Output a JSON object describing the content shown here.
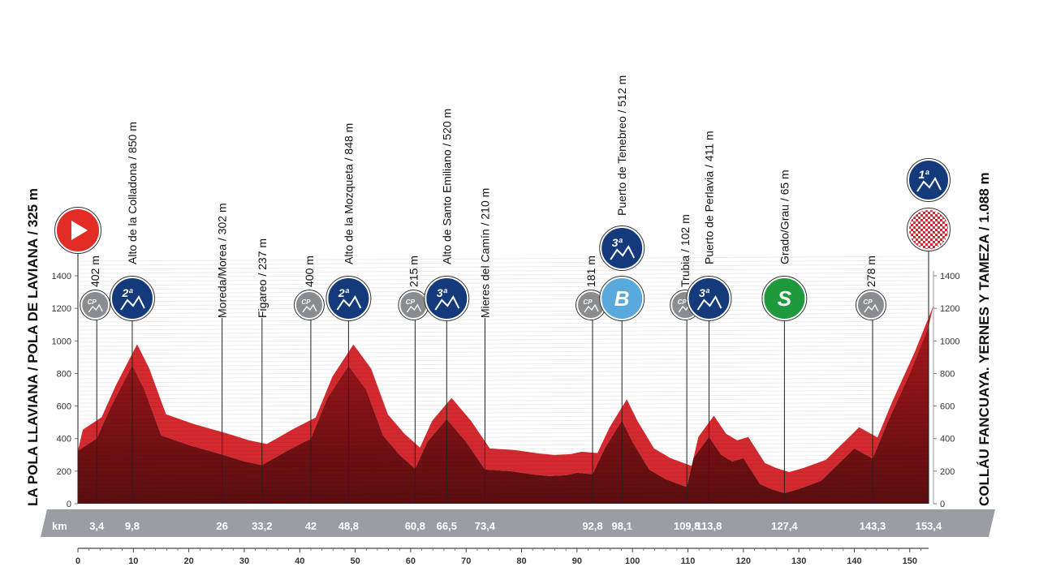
{
  "chart_data": {
    "type": "area",
    "start_label": "LA POLA LLAVIANA / POLA DE LAVIANA / 325 m",
    "finish_label": "COLLÁU FANCUAYA. YERNES Y TAMEZA / 1.088 m",
    "ylim": [
      0,
      1500
    ],
    "yticks": [
      0,
      200,
      400,
      600,
      800,
      1000,
      1200,
      1400
    ],
    "xlim": [
      0,
      153.4
    ],
    "xticks": [
      0,
      10,
      20,
      30,
      40,
      50,
      60,
      70,
      80,
      90,
      100,
      110,
      120,
      130,
      140,
      150
    ],
    "km_label": "km",
    "profile": {
      "x": [
        0,
        3.4,
        6,
        9.8,
        12,
        15,
        20,
        26,
        30,
        33.2,
        38,
        42,
        45,
        48.8,
        52,
        55,
        58,
        60.8,
        63,
        66.5,
        70,
        73.4,
        78,
        82,
        85,
        88,
        90,
        92.8,
        95,
        98.1,
        100,
        103,
        106,
        109.8,
        111,
        113.8,
        116,
        118,
        120,
        123,
        125,
        127.4,
        130,
        134,
        137,
        140,
        143.3,
        146,
        150,
        153.4
      ],
      "elevation": [
        325,
        402,
        600,
        850,
        700,
        420,
        360,
        302,
        260,
        237,
        330,
        400,
        650,
        848,
        700,
        420,
        300,
        215,
        380,
        520,
        380,
        210,
        200,
        180,
        170,
        175,
        190,
        181,
        340,
        512,
        380,
        210,
        150,
        102,
        280,
        411,
        300,
        260,
        280,
        120,
        90,
        65,
        90,
        140,
        240,
        340,
        278,
        500,
        800,
        1088
      ]
    },
    "points": [
      {
        "km": 3.4,
        "km_label": "3,4",
        "name": "402 m",
        "badge": "CP"
      },
      {
        "km": 9.8,
        "km_label": "9,8",
        "name": "Alto de la Colladona / 850 m",
        "badge": "2ª"
      },
      {
        "km": 26,
        "km_label": "26",
        "name": "Moreda/Morea / 302 m",
        "badge": ""
      },
      {
        "km": 33.2,
        "km_label": "33,2",
        "name": "Figareo / 237 m",
        "badge": ""
      },
      {
        "km": 42,
        "km_label": "42",
        "name": "400 m",
        "badge": "CP"
      },
      {
        "km": 48.8,
        "km_label": "48,8",
        "name": "Alto de la Mozqueta / 848 m",
        "badge": "2ª"
      },
      {
        "km": 60.8,
        "km_label": "60,8",
        "name": "215 m",
        "badge": "CP"
      },
      {
        "km": 66.5,
        "km_label": "66,5",
        "name": "Alto de Santo Emiliano / 520 m",
        "badge": "3ª"
      },
      {
        "km": 73.4,
        "km_label": "73,4",
        "name": "Mieres del Camín / 210 m",
        "badge": ""
      },
      {
        "km": 92.8,
        "km_label": "92,8",
        "name": "181 m",
        "badge": "CP"
      },
      {
        "km": 98.1,
        "km_label": "98,1",
        "name": "Puerto de Tenebreo / 512 m",
        "badge": "3ª+B"
      },
      {
        "km": 109.8,
        "km_label": "109,8",
        "name": "Trubia / 102 m",
        "badge": "CP"
      },
      {
        "km": 113.8,
        "km_label": "113,8",
        "name": "Puerto de Perlavia / 411 m",
        "badge": "3ª"
      },
      {
        "km": 127.4,
        "km_label": "127,4",
        "name": "Grado/Grau / 65 m",
        "badge": "S"
      },
      {
        "km": 143.3,
        "km_label": "143,3",
        "name": "278 m",
        "badge": "CP"
      },
      {
        "km": 153.4,
        "km_label": "153,4",
        "name": "",
        "badge": "1ª+finish"
      }
    ],
    "badge_text": {
      "cp": "CP",
      "b": "B",
      "s": "S",
      "cat1": "1ª",
      "cat2": "2ª",
      "cat3": "3ª"
    },
    "colors": {
      "profile": "#d42a2f",
      "profile_dark": "#5a0e10",
      "km_bar": "#9a9ea3",
      "category": "#143a7c",
      "cp": "#8a8d90",
      "bonus": "#5aa9dc",
      "sprint": "#1e9a3c",
      "start": "#e12d25"
    }
  }
}
